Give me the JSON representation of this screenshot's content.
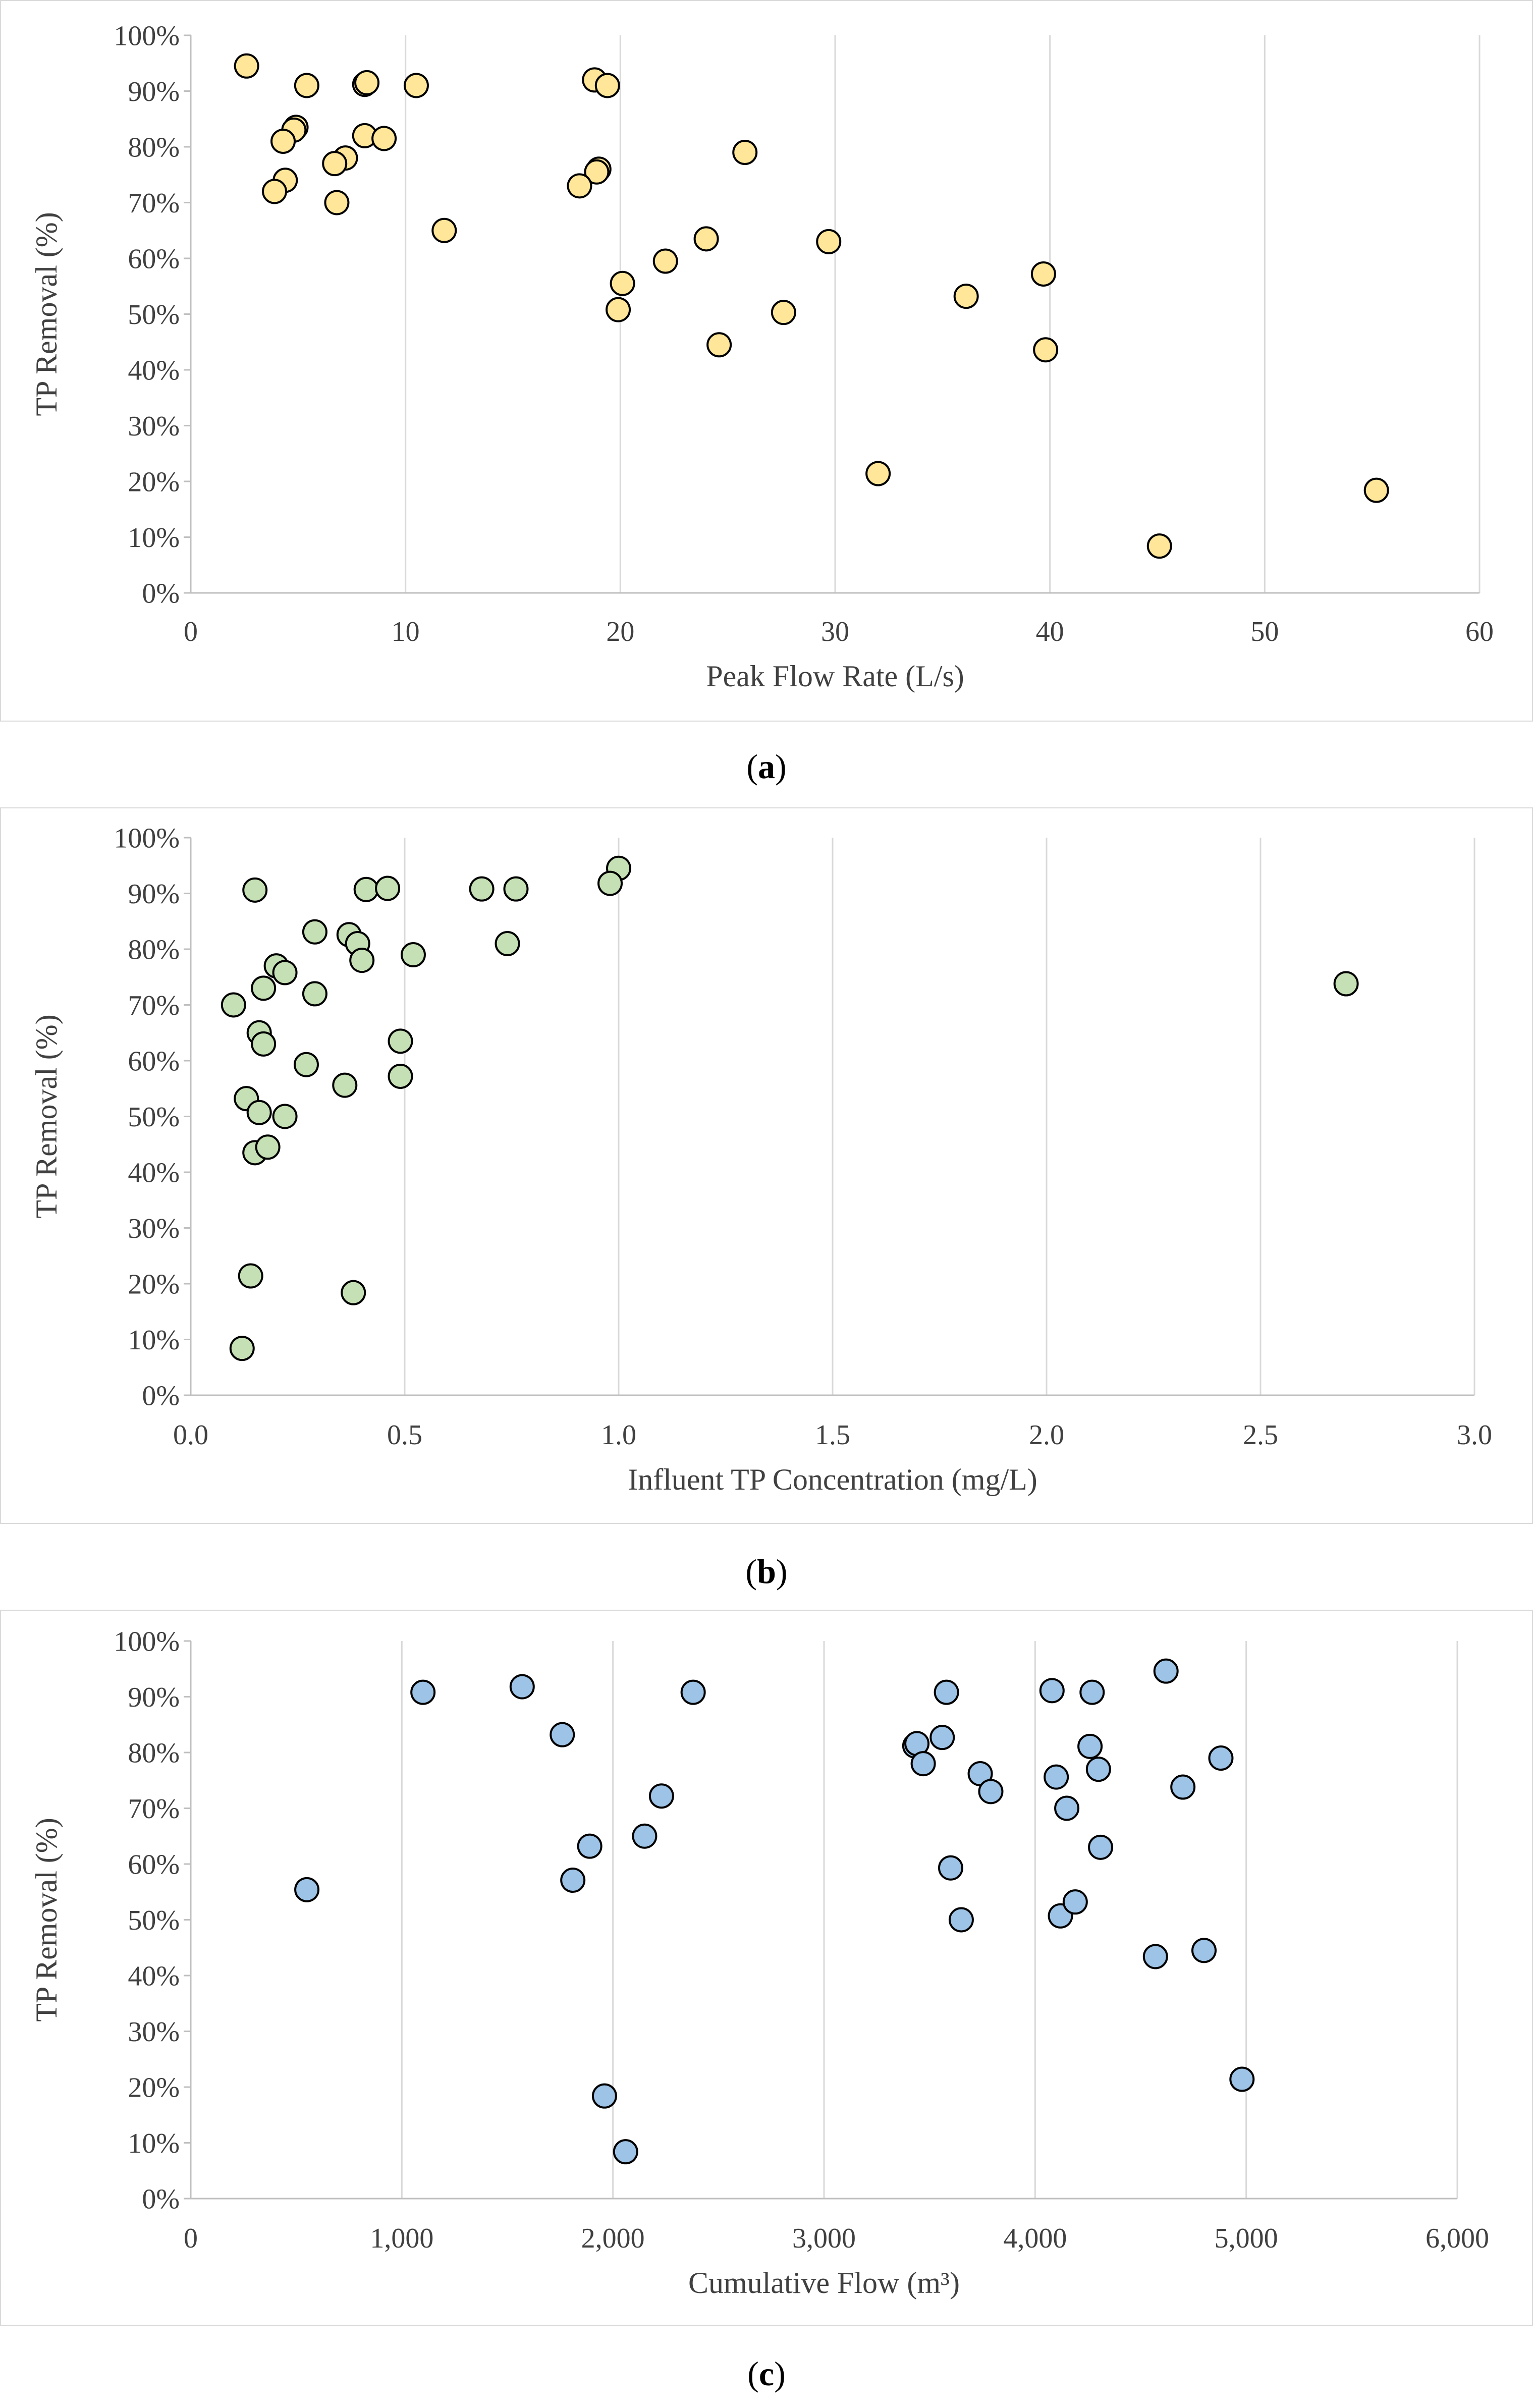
{
  "colors": {
    "panel_a_fill": "#FFE699",
    "panel_b_fill": "#C5E0B4",
    "panel_c_fill": "#9DC3E6",
    "marker_stroke": "#000000",
    "axis": "#bfbfbf",
    "grid": "#d9d9d9",
    "text": "#404040"
  },
  "captions": [
    {
      "open": "(",
      "letter": "a",
      "close": ")"
    },
    {
      "open": "(",
      "letter": "b",
      "close": ")"
    },
    {
      "open": "(",
      "letter": "c",
      "close": ")"
    }
  ],
  "chart_data": [
    {
      "type": "scatter",
      "panel": "a",
      "title": "",
      "xlabel": "Peak Flow Rate (L/s)",
      "ylabel": "TP Removal (%)",
      "xlim": [
        0,
        60
      ],
      "ylim": [
        0,
        100
      ],
      "x_ticks": [
        0,
        10,
        20,
        30,
        40,
        50,
        60
      ],
      "x_tick_labels": [
        "0",
        "10",
        "20",
        "30",
        "40",
        "50",
        "60"
      ],
      "y_ticks": [
        0,
        10,
        20,
        30,
        40,
        50,
        60,
        70,
        80,
        90,
        100
      ],
      "y_tick_labels": [
        "0%",
        "10%",
        "20%",
        "30%",
        "40%",
        "50%",
        "60%",
        "70%",
        "80%",
        "90%",
        "100%"
      ],
      "grid": "vertical",
      "legend": "none",
      "marker_color": "#FFE699",
      "points": [
        {
          "x": 2.6,
          "y": 94.5
        },
        {
          "x": 5.4,
          "y": 91
        },
        {
          "x": 8.1,
          "y": 91.2
        },
        {
          "x": 8.2,
          "y": 91.5
        },
        {
          "x": 10.5,
          "y": 91
        },
        {
          "x": 18.8,
          "y": 92
        },
        {
          "x": 19.4,
          "y": 91
        },
        {
          "x": 4.9,
          "y": 83.5
        },
        {
          "x": 4.8,
          "y": 83
        },
        {
          "x": 4.3,
          "y": 81
        },
        {
          "x": 8.1,
          "y": 82
        },
        {
          "x": 9.0,
          "y": 81.5
        },
        {
          "x": 7.2,
          "y": 78
        },
        {
          "x": 6.7,
          "y": 77
        },
        {
          "x": 4.4,
          "y": 74
        },
        {
          "x": 3.9,
          "y": 72
        },
        {
          "x": 6.8,
          "y": 70
        },
        {
          "x": 19.0,
          "y": 76
        },
        {
          "x": 18.9,
          "y": 75.5
        },
        {
          "x": 18.1,
          "y": 73
        },
        {
          "x": 25.8,
          "y": 79
        },
        {
          "x": 11.8,
          "y": 65
        },
        {
          "x": 24.0,
          "y": 63.5
        },
        {
          "x": 29.7,
          "y": 63
        },
        {
          "x": 22.1,
          "y": 59.5
        },
        {
          "x": 20.1,
          "y": 55.5
        },
        {
          "x": 19.9,
          "y": 50.8
        },
        {
          "x": 27.6,
          "y": 50.3
        },
        {
          "x": 24.6,
          "y": 44.5
        },
        {
          "x": 36.1,
          "y": 53.2
        },
        {
          "x": 39.7,
          "y": 57.2
        },
        {
          "x": 39.8,
          "y": 43.6
        },
        {
          "x": 32.0,
          "y": 21.4
        },
        {
          "x": 45.1,
          "y": 8.4
        },
        {
          "x": 55.2,
          "y": 18.4
        }
      ]
    },
    {
      "type": "scatter",
      "panel": "b",
      "title": "",
      "xlabel": "Influent TP Concentration (mg/L)",
      "ylabel": "TP Removal (%)",
      "xlim": [
        0,
        3
      ],
      "ylim": [
        0,
        100
      ],
      "x_ticks": [
        0,
        0.5,
        1.0,
        1.5,
        2.0,
        2.5,
        3.0
      ],
      "x_tick_labels": [
        "0.0",
        "0.5",
        "1.0",
        "1.5",
        "2.0",
        "2.5",
        "3.0"
      ],
      "y_ticks": [
        0,
        10,
        20,
        30,
        40,
        50,
        60,
        70,
        80,
        90,
        100
      ],
      "y_tick_labels": [
        "0%",
        "10%",
        "20%",
        "30%",
        "40%",
        "50%",
        "60%",
        "70%",
        "80%",
        "90%",
        "100%"
      ],
      "grid": "vertical",
      "legend": "none",
      "marker_color": "#C5E0B4",
      "points": [
        {
          "x": 1.0,
          "y": 94.5
        },
        {
          "x": 0.98,
          "y": 91.8
        },
        {
          "x": 0.15,
          "y": 90.6
        },
        {
          "x": 0.41,
          "y": 90.7
        },
        {
          "x": 0.46,
          "y": 90.9
        },
        {
          "x": 0.68,
          "y": 90.8
        },
        {
          "x": 0.76,
          "y": 90.8
        },
        {
          "x": 0.29,
          "y": 83.1
        },
        {
          "x": 0.37,
          "y": 82.6
        },
        {
          "x": 0.39,
          "y": 81
        },
        {
          "x": 0.74,
          "y": 81
        },
        {
          "x": 0.4,
          "y": 78
        },
        {
          "x": 0.52,
          "y": 79
        },
        {
          "x": 0.2,
          "y": 77
        },
        {
          "x": 0.22,
          "y": 75.8
        },
        {
          "x": 0.17,
          "y": 73
        },
        {
          "x": 0.29,
          "y": 72
        },
        {
          "x": 0.1,
          "y": 70
        },
        {
          "x": 0.16,
          "y": 65
        },
        {
          "x": 0.17,
          "y": 63
        },
        {
          "x": 0.49,
          "y": 63.5
        },
        {
          "x": 0.27,
          "y": 59.3
        },
        {
          "x": 0.49,
          "y": 57.2
        },
        {
          "x": 0.36,
          "y": 55.6
        },
        {
          "x": 0.13,
          "y": 53.2
        },
        {
          "x": 0.16,
          "y": 50.7
        },
        {
          "x": 0.22,
          "y": 50
        },
        {
          "x": 0.15,
          "y": 43.5
        },
        {
          "x": 0.18,
          "y": 44.5
        },
        {
          "x": 2.7,
          "y": 73.8
        },
        {
          "x": 0.14,
          "y": 21.4
        },
        {
          "x": 0.38,
          "y": 18.4
        },
        {
          "x": 0.12,
          "y": 8.4
        }
      ]
    },
    {
      "type": "scatter",
      "panel": "c",
      "title": "",
      "xlabel": "Cumulative Flow (m³)",
      "ylabel": "TP Removal (%)",
      "xlim": [
        0,
        6000
      ],
      "ylim": [
        0,
        100
      ],
      "x_ticks": [
        0,
        1000,
        2000,
        3000,
        4000,
        5000,
        6000
      ],
      "x_tick_labels": [
        "0",
        "1,000",
        "2,000",
        "3,000",
        "4,000",
        "5,000",
        "6,000"
      ],
      "y_ticks": [
        0,
        10,
        20,
        30,
        40,
        50,
        60,
        70,
        80,
        90,
        100
      ],
      "y_tick_labels": [
        "0%",
        "10%",
        "20%",
        "30%",
        "40%",
        "50%",
        "60%",
        "70%",
        "80%",
        "90%",
        "100%"
      ],
      "grid": "vertical",
      "legend": "none",
      "marker_color": "#9DC3E6",
      "points": [
        {
          "x": 1100,
          "y": 90.8
        },
        {
          "x": 1570,
          "y": 91.8
        },
        {
          "x": 2380,
          "y": 90.8
        },
        {
          "x": 1760,
          "y": 83.2
        },
        {
          "x": 2230,
          "y": 72.2
        },
        {
          "x": 1890,
          "y": 63.2
        },
        {
          "x": 2150,
          "y": 65
        },
        {
          "x": 1810,
          "y": 57.1
        },
        {
          "x": 550,
          "y": 55.4
        },
        {
          "x": 1960,
          "y": 18.4
        },
        {
          "x": 2060,
          "y": 8.4
        },
        {
          "x": 3580,
          "y": 90.8
        },
        {
          "x": 4620,
          "y": 94.6
        },
        {
          "x": 4080,
          "y": 91.1
        },
        {
          "x": 4270,
          "y": 90.8
        },
        {
          "x": 3430,
          "y": 81.2
        },
        {
          "x": 3440,
          "y": 81.6
        },
        {
          "x": 3560,
          "y": 82.7
        },
        {
          "x": 3470,
          "y": 78
        },
        {
          "x": 3740,
          "y": 76.2
        },
        {
          "x": 3790,
          "y": 73
        },
        {
          "x": 4260,
          "y": 81.1
        },
        {
          "x": 4100,
          "y": 75.6
        },
        {
          "x": 4300,
          "y": 77
        },
        {
          "x": 4150,
          "y": 70
        },
        {
          "x": 4700,
          "y": 73.8
        },
        {
          "x": 4880,
          "y": 79
        },
        {
          "x": 4310,
          "y": 63
        },
        {
          "x": 3600,
          "y": 59.3
        },
        {
          "x": 3650,
          "y": 50
        },
        {
          "x": 4120,
          "y": 50.7
        },
        {
          "x": 4190,
          "y": 53.2
        },
        {
          "x": 4570,
          "y": 43.4
        },
        {
          "x": 4800,
          "y": 44.5
        },
        {
          "x": 4980,
          "y": 21.4
        }
      ]
    }
  ]
}
